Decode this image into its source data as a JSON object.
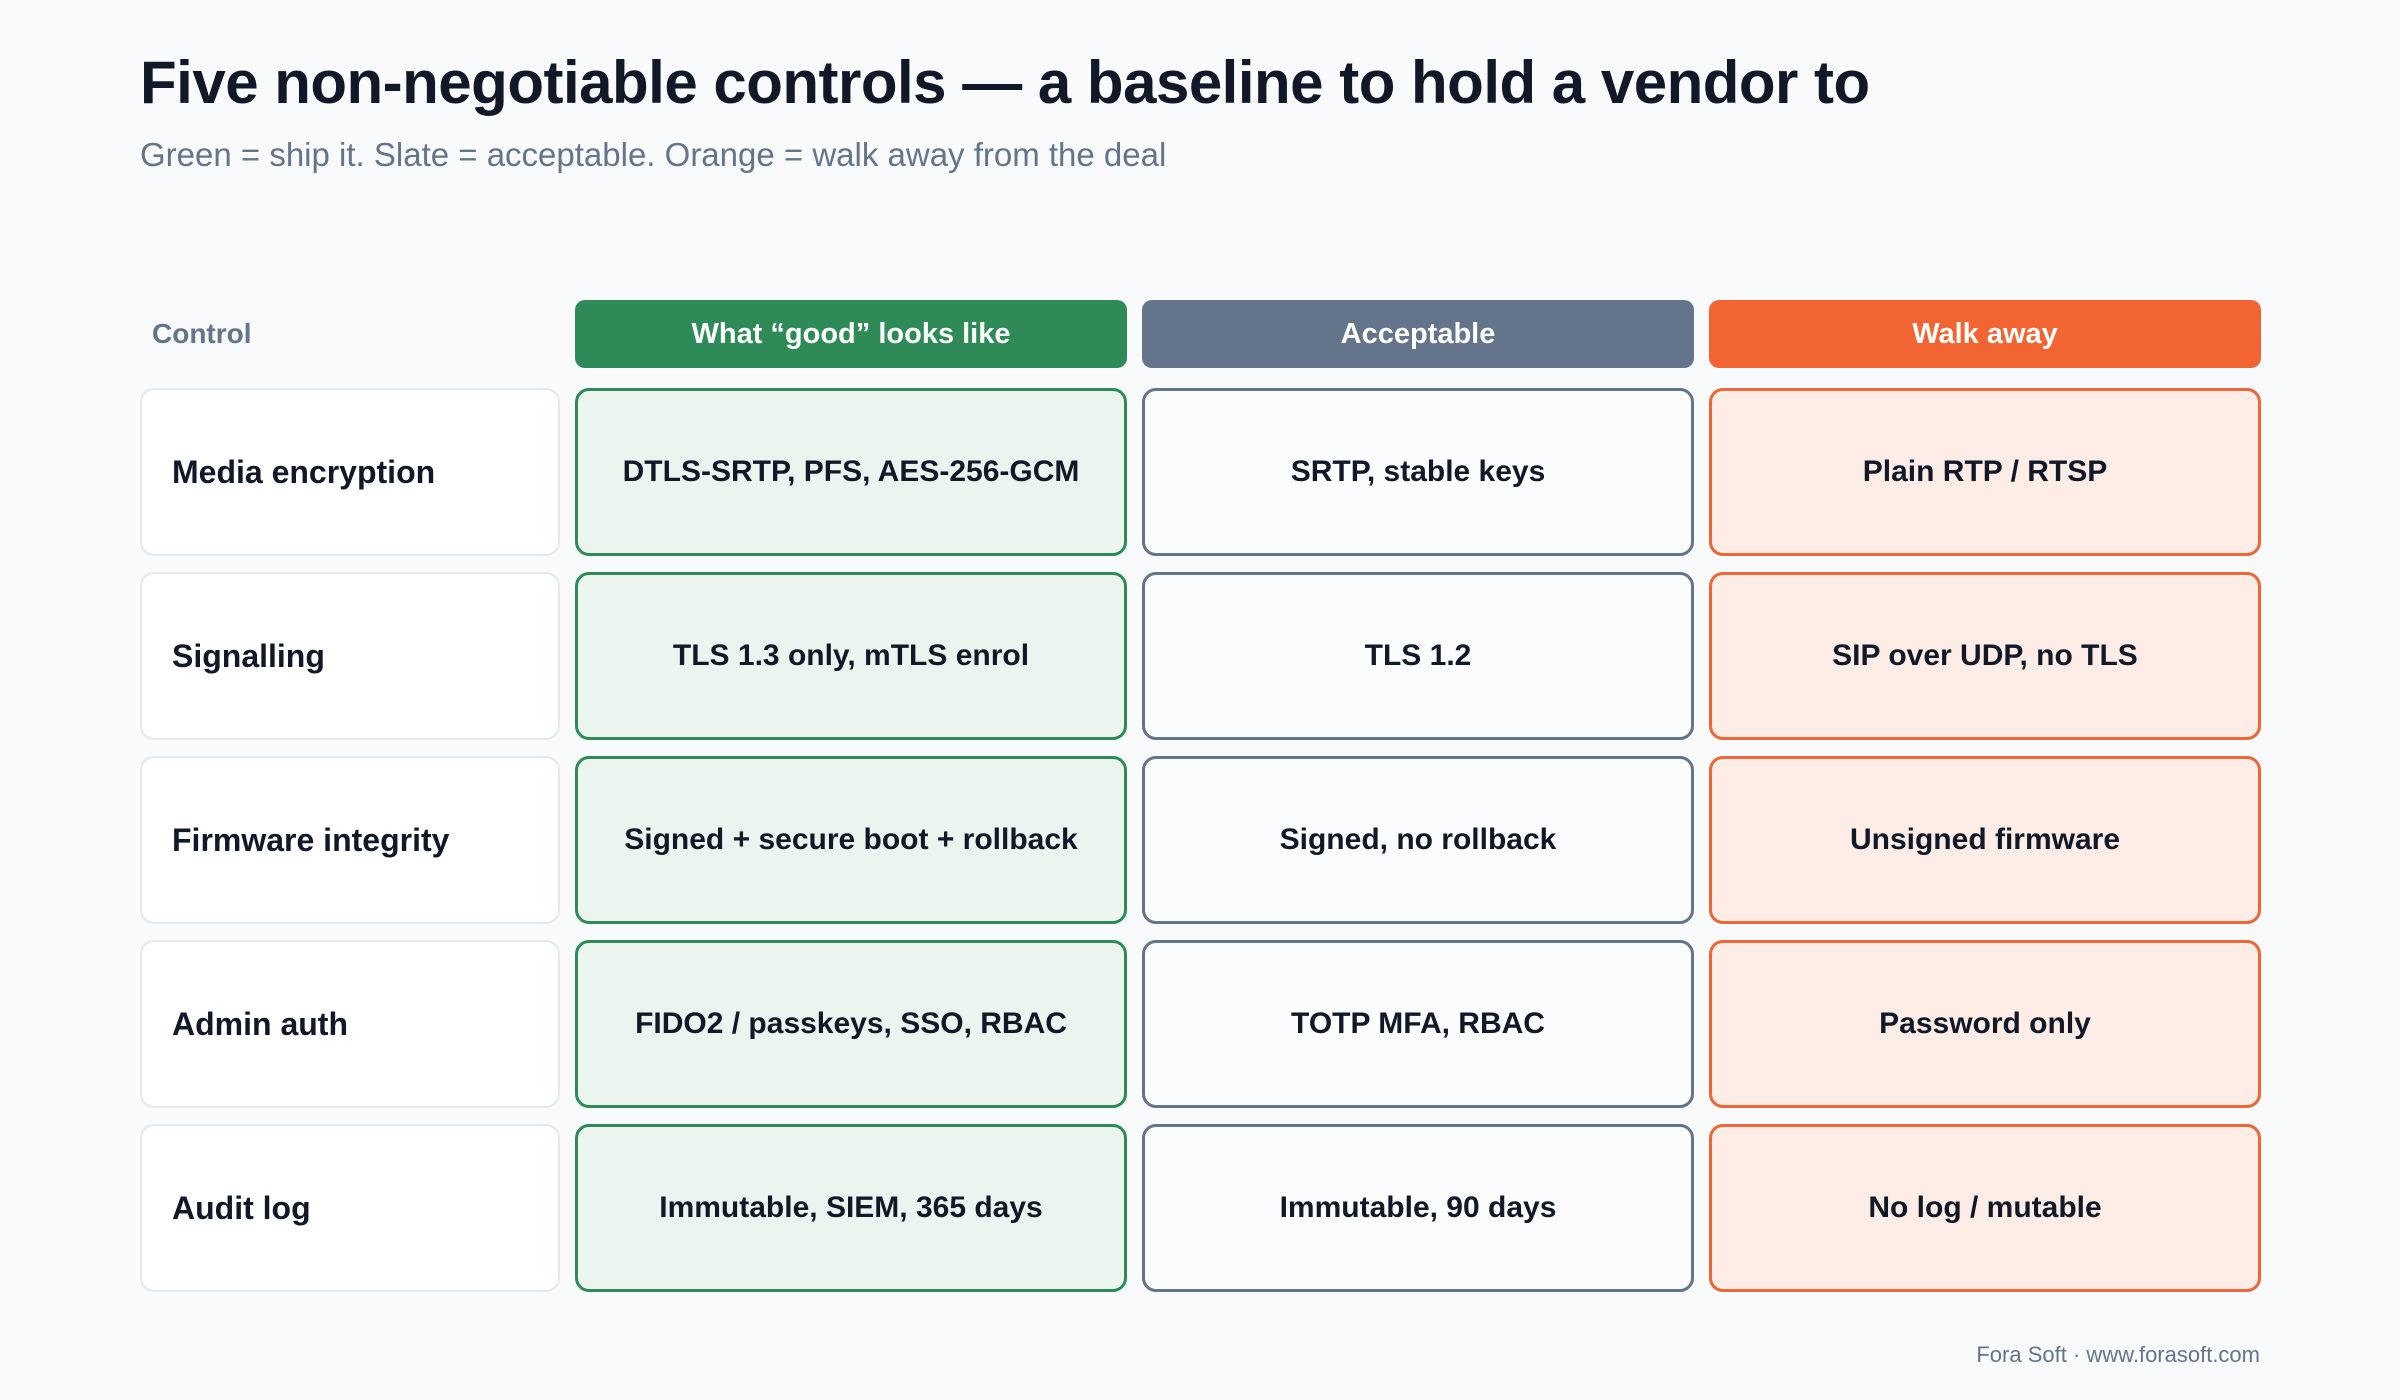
{
  "title": "Five non-negotiable controls — a baseline to hold a vendor to",
  "subtitle": "Green = ship it. Slate = acceptable. Orange = walk away from the deal",
  "colors": {
    "good": "#2e8b57",
    "acceptable": "#64748b",
    "walk_away": "#f26532"
  },
  "headers": {
    "control": "Control",
    "good": "What “good” looks like",
    "acceptable": "Acceptable",
    "walk_away": "Walk away"
  },
  "rows": [
    {
      "control": "Media encryption",
      "good": "DTLS-SRTP, PFS, AES-256-GCM",
      "acceptable": "SRTP, stable keys",
      "walk_away": "Plain RTP / RTSP"
    },
    {
      "control": "Signalling",
      "good": "TLS 1.3 only, mTLS enrol",
      "acceptable": "TLS 1.2",
      "walk_away": "SIP over UDP, no TLS"
    },
    {
      "control": "Firmware integrity",
      "good": "Signed + secure boot + rollback",
      "acceptable": "Signed, no rollback",
      "walk_away": "Unsigned firmware"
    },
    {
      "control": "Admin auth",
      "good": "FIDO2 / passkeys, SSO, RBAC",
      "acceptable": "TOTP MFA, RBAC",
      "walk_away": "Password only"
    },
    {
      "control": "Audit log",
      "good": "Immutable, SIEM, 365 days",
      "acceptable": "Immutable, 90 days",
      "walk_away": "No log / mutable"
    }
  ],
  "footer": "Fora Soft · www.forasoft.com"
}
